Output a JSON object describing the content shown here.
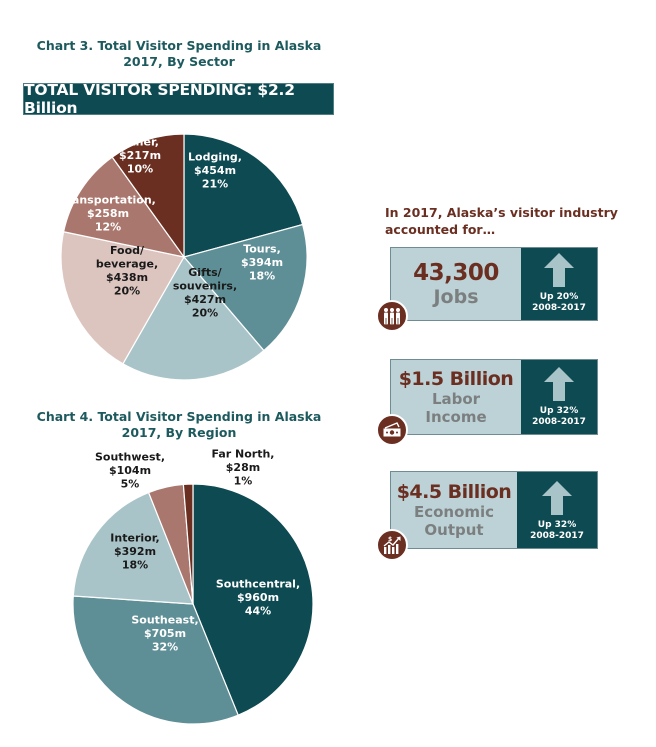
{
  "chart_data": [
    {
      "type": "pie",
      "title": "Chart 3. Total Visitor Spending in Alaska 2017, By Sector",
      "title_lines": [
        "Chart 3. Total Visitor Spending in Alaska",
        "2017, By Sector"
      ],
      "banner": "TOTAL VISITOR SPENDING: $2.2 Billion",
      "start_angle_deg": 0,
      "direction": "clockwise",
      "slices": [
        {
          "name": "Lodging",
          "value_musd": 454,
          "percent": 21,
          "lines": [
            "Lodging,",
            "$454m",
            "21%"
          ],
          "color": "#0d4a52",
          "text_color": "#ffffff"
        },
        {
          "name": "Tours",
          "value_musd": 394,
          "percent": 18,
          "lines": [
            "Tours,",
            "$394m",
            "18%"
          ],
          "color": "#5f8f96",
          "text_color": "#ffffff"
        },
        {
          "name": "Gifts/souvenirs",
          "value_musd": 427,
          "percent": 20,
          "lines": [
            "Gifts/",
            "souvenirs,",
            "$427m",
            "20%"
          ],
          "color": "#a9c4c8",
          "text_color": "#1a1a1a"
        },
        {
          "name": "Food/beverage",
          "value_musd": 438,
          "percent": 20,
          "lines": [
            "Food/",
            "beverage,",
            "$438m",
            "20%"
          ],
          "color": "#dcc4bf",
          "text_color": "#1a1a1a"
        },
        {
          "name": "Transportation",
          "value_musd": 258,
          "percent": 12,
          "lines": [
            "Transportation,",
            "$258m",
            "12%"
          ],
          "color": "#a9776d",
          "text_color": "#ffffff"
        },
        {
          "name": "Other",
          "value_musd": 217,
          "percent": 10,
          "lines": [
            "Other,",
            "$217m",
            "10%"
          ],
          "color": "#6b2f22",
          "text_color": "#ffffff"
        }
      ]
    },
    {
      "type": "pie",
      "title": "Chart 4. Total Visitor Spending in Alaska 2017, By Region",
      "title_lines": [
        "Chart 4. Total Visitor Spending in Alaska",
        "2017, By Region"
      ],
      "start_angle_deg": 0,
      "direction": "clockwise",
      "slices": [
        {
          "name": "Southcentral",
          "value_musd": 960,
          "percent": 44,
          "lines": [
            "Southcentral,",
            "$960m",
            "44%"
          ],
          "color": "#0d4a52",
          "text_color": "#ffffff"
        },
        {
          "name": "Southeast",
          "value_musd": 705,
          "percent": 32,
          "lines": [
            "Southeast,",
            "$705m",
            "32%"
          ],
          "color": "#5f8f96",
          "text_color": "#ffffff"
        },
        {
          "name": "Interior",
          "value_musd": 392,
          "percent": 18,
          "lines": [
            "Interior,",
            "$392m",
            "18%"
          ],
          "color": "#a9c4c8",
          "text_color": "#1a1a1a"
        },
        {
          "name": "Southwest",
          "value_musd": 104,
          "percent": 5,
          "lines": [
            "Southwest,",
            "$104m",
            "5%"
          ],
          "color": "#a9776d",
          "text_color": "#1a1a1a"
        },
        {
          "name": "Far North",
          "value_musd": 28,
          "percent": 1,
          "lines": [
            "Far North,",
            "$28m",
            "1%"
          ],
          "color": "#6b2f22",
          "text_color": "#1a1a1a"
        }
      ]
    }
  ],
  "impact": {
    "intro_lines": [
      "In 2017, Alaska’s visitor industry",
      "accounted for…"
    ],
    "cards": [
      {
        "value": "43,300",
        "label_lines": [
          "Jobs"
        ],
        "change_lines": [
          "Up 20%",
          "2008-2017"
        ],
        "icon": "people-icon",
        "trend": "up"
      },
      {
        "value": "$1.5 Billion",
        "label_lines": [
          "Labor",
          "Income"
        ],
        "change_lines": [
          "Up 32%",
          "2008-2017"
        ],
        "icon": "money-icon",
        "trend": "up"
      },
      {
        "value": "$4.5 Billion",
        "label_lines": [
          "Economic",
          "Output"
        ],
        "change_lines": [
          "Up 32%",
          "2008-2017"
        ],
        "icon": "growth-chart-icon",
        "trend": "up"
      }
    ]
  },
  "colors": {
    "teal_dark": "#0d4a52",
    "brown": "#6b2f22",
    "card_bg": "#bdd2d6",
    "arrow": "#a9c4c8",
    "title_teal": "#1d5a5e"
  }
}
